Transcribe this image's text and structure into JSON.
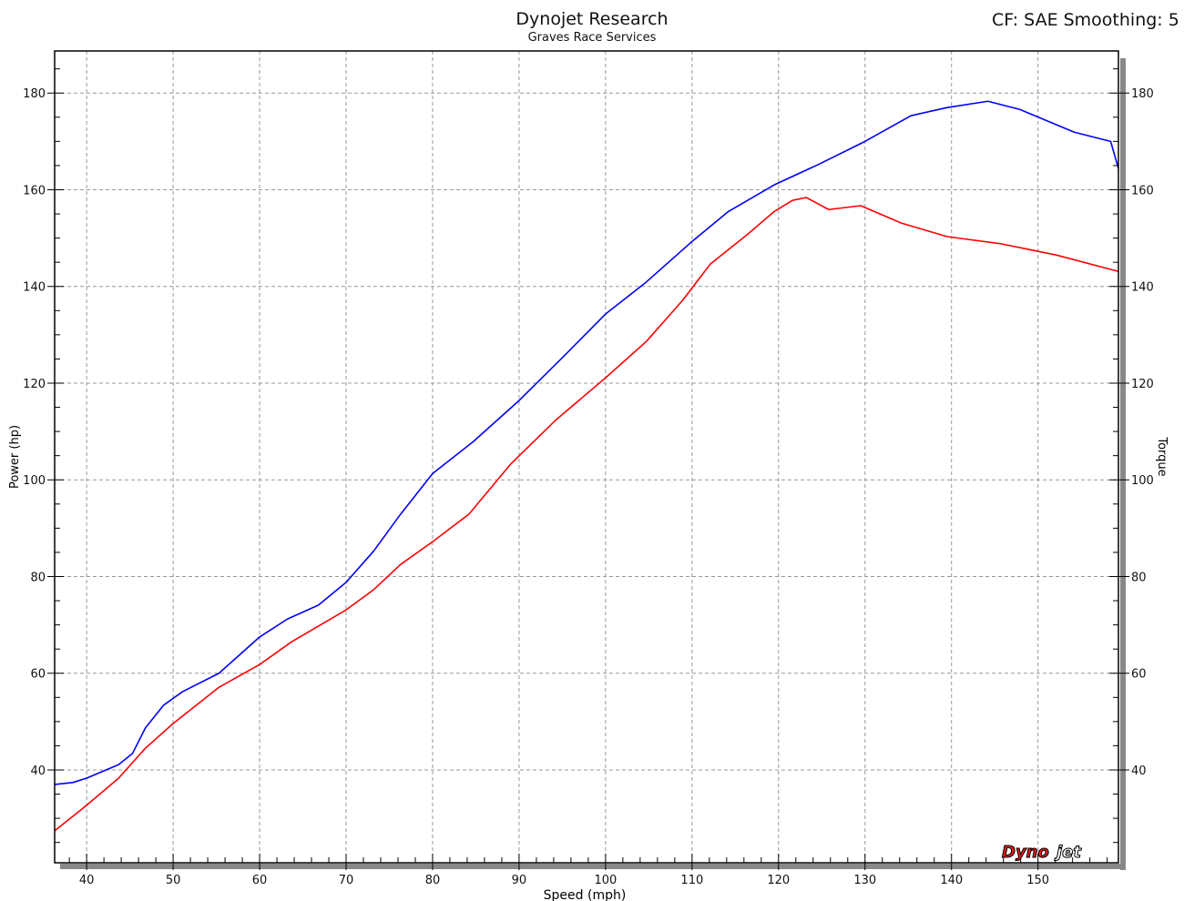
{
  "header": {
    "title": "Dynojet Research",
    "subtitle": "Graves Race Services",
    "settings": "CF: SAE Smoothing: 5"
  },
  "logo": {
    "text": "Dynojet"
  },
  "chart_data": {
    "type": "line",
    "xlabel": "Speed (mph)",
    "ylabel": "Power (hp)",
    "ylabel_right": "Torque",
    "xlim": [
      36.3,
      159.3
    ],
    "ylim": [
      20.8,
      188.7
    ],
    "xticks": [
      40,
      50,
      60,
      70,
      80,
      90,
      100,
      110,
      120,
      130,
      140,
      150
    ],
    "yticks": [
      40,
      60,
      80,
      100,
      120,
      140,
      160,
      180
    ],
    "grid": true,
    "series": [
      {
        "color": "#0000ff",
        "points": [
          [
            36.3,
            37.0
          ],
          [
            38.4,
            37.4
          ],
          [
            40,
            38.3
          ],
          [
            43.7,
            41.1
          ],
          [
            45.3,
            43.4
          ],
          [
            46.8,
            48.7
          ],
          [
            48.9,
            53.4
          ],
          [
            51.1,
            56.2
          ],
          [
            55.3,
            60
          ],
          [
            60,
            67.5
          ],
          [
            63.2,
            71.2
          ],
          [
            66.8,
            74.1
          ],
          [
            70,
            78.8
          ],
          [
            73.2,
            85.3
          ],
          [
            76.3,
            92.9
          ],
          [
            80,
            101.3
          ],
          [
            84.7,
            107.9
          ],
          [
            90,
            116.4
          ],
          [
            95.3,
            125.8
          ],
          [
            100,
            134.3
          ],
          [
            104.7,
            140.9
          ],
          [
            110,
            149.3
          ],
          [
            114.2,
            155.5
          ],
          [
            119.5,
            161
          ],
          [
            124.7,
            165.3
          ],
          [
            130,
            170
          ],
          [
            135.3,
            175.3
          ],
          [
            139.5,
            177
          ],
          [
            144.2,
            178.3
          ],
          [
            147.9,
            176.6
          ],
          [
            154.2,
            171.9
          ],
          [
            158.4,
            170
          ],
          [
            159.3,
            164.4
          ]
        ]
      },
      {
        "color": "#ff0000",
        "points": [
          [
            36.3,
            27.4
          ],
          [
            40,
            32.7
          ],
          [
            43.7,
            38.3
          ],
          [
            46.8,
            44.5
          ],
          [
            50,
            49.6
          ],
          [
            55.3,
            57.1
          ],
          [
            60,
            61.8
          ],
          [
            63.7,
            66.5
          ],
          [
            70,
            73.1
          ],
          [
            73.2,
            77.3
          ],
          [
            76.3,
            82.5
          ],
          [
            80,
            87.2
          ],
          [
            84.2,
            92.9
          ],
          [
            89,
            103.2
          ],
          [
            94.2,
            112.3
          ],
          [
            100,
            121.1
          ],
          [
            104.7,
            128.6
          ],
          [
            108.9,
            137.1
          ],
          [
            112.1,
            144.6
          ],
          [
            116.3,
            150.6
          ],
          [
            119.5,
            155.5
          ],
          [
            121.6,
            157.8
          ],
          [
            123.2,
            158.4
          ],
          [
            125.8,
            155.9
          ],
          [
            129.5,
            156.7
          ],
          [
            134.2,
            153.1
          ],
          [
            139.5,
            150.3
          ],
          [
            145.8,
            148.8
          ],
          [
            152.1,
            146.5
          ],
          [
            159.3,
            143.1
          ]
        ]
      }
    ]
  }
}
